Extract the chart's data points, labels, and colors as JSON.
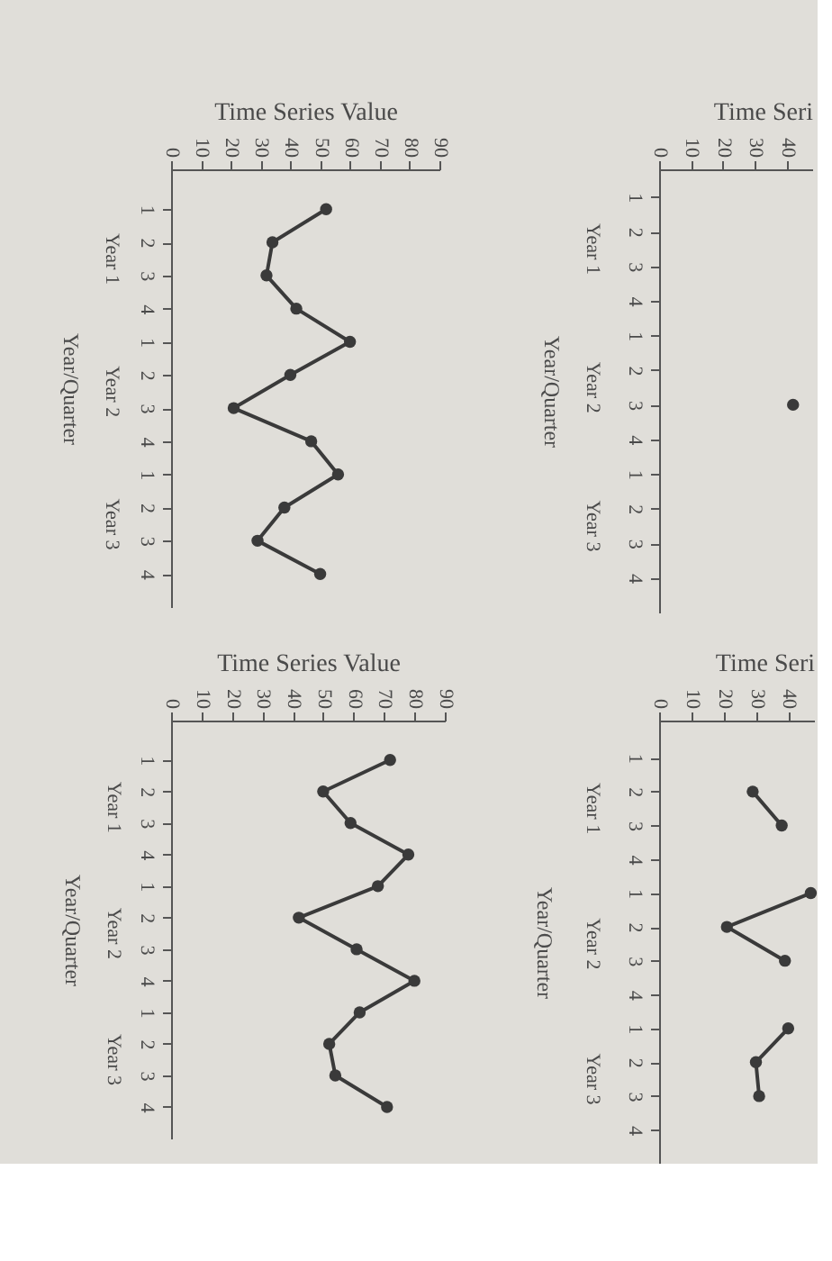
{
  "chart_data": [
    {
      "type": "line",
      "orientation": "horizontal",
      "xlabel": "Time Series Value",
      "ylabel": "Year/Quarter",
      "categories": [
        "1",
        "2",
        "3",
        "4",
        "1",
        "2",
        "3",
        "4",
        "1",
        "2",
        "3",
        "4"
      ],
      "annotations": [
        "Year 1",
        "Year 2",
        "Year 3"
      ],
      "xlim": [
        0,
        90
      ],
      "xticks": [
        0,
        10,
        20,
        30,
        40,
        50,
        60,
        70,
        80,
        90
      ],
      "marker": "circle",
      "line_style": "solid",
      "series": [
        {
          "color": "#3a3a3a",
          "values": [
            52,
            34,
            32,
            42,
            60,
            40,
            21,
            47,
            56,
            38,
            29,
            50
          ]
        }
      ]
    },
    {
      "type": "line",
      "orientation": "horizontal",
      "xlabel": "Time Seri",
      "ylabel": "Year/Quarter",
      "categories": [
        "1",
        "2",
        "3",
        "4",
        "1",
        "2",
        "3",
        "4",
        "1",
        "2",
        "3",
        "4"
      ],
      "annotations": [
        "Year 1",
        "Year 2",
        "Year 3"
      ],
      "xlim": [
        0,
        48
      ],
      "xticks": [
        0,
        10,
        20,
        30,
        40
      ],
      "marker": "circle",
      "line_style": "solid",
      "series": [
        {
          "color": "#3a3a3a",
          "values": [
            null,
            null,
            null,
            null,
            null,
            null,
            42,
            null,
            null,
            null,
            null,
            null
          ]
        }
      ]
    },
    {
      "type": "line",
      "orientation": "horizontal",
      "xlabel": "Time Series Value",
      "ylabel": "Year/Quarter",
      "categories": [
        "1",
        "2",
        "3",
        "4",
        "1",
        "2",
        "3",
        "4",
        "1",
        "2",
        "3",
        "4"
      ],
      "annotations": [
        "Year 1",
        "Year 2",
        "Year 3"
      ],
      "xlim": [
        0,
        90
      ],
      "xticks": [
        0,
        10,
        20,
        30,
        40,
        50,
        60,
        70,
        80,
        90
      ],
      "marker": "circle",
      "line_style": "solid",
      "series": [
        {
          "color": "#3a3a3a",
          "values": [
            72,
            50,
            59,
            78,
            68,
            42,
            61,
            80,
            62,
            52,
            54,
            71
          ]
        }
      ]
    },
    {
      "type": "line",
      "orientation": "horizontal",
      "xlabel": "Time Seri",
      "ylabel": "Year/Quarter",
      "categories": [
        "1",
        "2",
        "3",
        "4",
        "1",
        "2",
        "3",
        "4",
        "1",
        "2",
        "3",
        "4"
      ],
      "annotations": [
        "Year 1",
        "Year 2",
        "Year 3"
      ],
      "xlim": [
        0,
        48
      ],
      "xticks": [
        0,
        10,
        20,
        30,
        40
      ],
      "marker": "circle",
      "line_style": "solid",
      "series": [
        {
          "color": "#3a3a3a",
          "values": [
            null,
            29,
            38,
            null,
            47,
            21,
            39,
            null,
            40,
            30,
            31,
            null
          ]
        }
      ]
    }
  ]
}
